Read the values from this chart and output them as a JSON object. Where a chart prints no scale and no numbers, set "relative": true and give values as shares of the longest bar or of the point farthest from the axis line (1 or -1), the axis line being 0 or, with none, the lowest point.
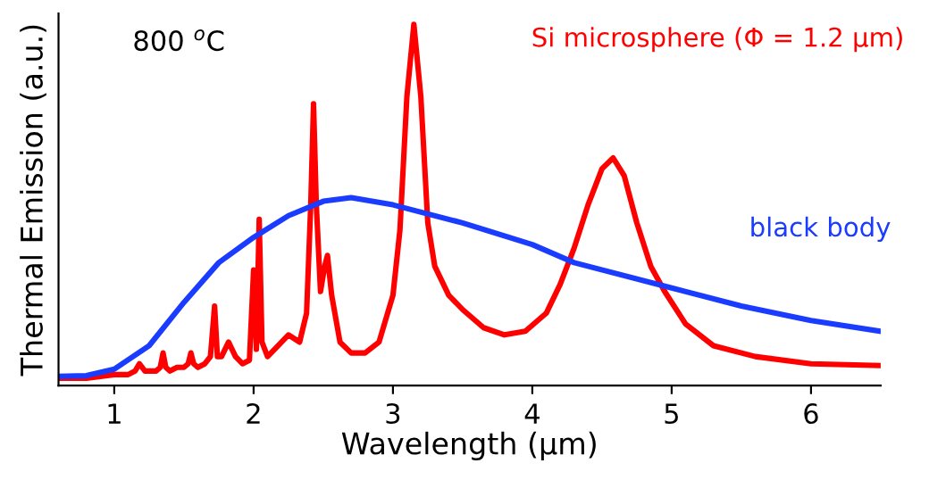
{
  "chart_data": {
    "type": "line",
    "relative": true,
    "xlabel": "Wavelength (µm)",
    "ylabel": "Thermal Emission (a.u.)",
    "annotations": [
      "800 $^{o}$C"
    ],
    "xlim": [
      0.6,
      6.5
    ],
    "xticks": [
      1,
      2,
      3,
      4,
      5,
      6
    ],
    "grid": false,
    "legend": false,
    "marker": "none",
    "line_style": "solid",
    "series": [
      {
        "name": "Si microsphere (Φ = 1.2 µm)",
        "color": "#ff0000",
        "x": [
          0.6,
          0.8,
          1.0,
          1.1,
          1.15,
          1.18,
          1.22,
          1.25,
          1.3,
          1.33,
          1.35,
          1.37,
          1.4,
          1.45,
          1.5,
          1.53,
          1.55,
          1.57,
          1.6,
          1.65,
          1.69,
          1.72,
          1.74,
          1.77,
          1.82,
          1.87,
          1.92,
          1.97,
          2.0,
          2.02,
          2.04,
          2.06,
          2.1,
          2.15,
          2.25,
          2.33,
          2.38,
          2.41,
          2.43,
          2.45,
          2.48,
          2.51,
          2.53,
          2.56,
          2.62,
          2.7,
          2.8,
          2.9,
          3.0,
          3.05,
          3.1,
          3.15,
          3.2,
          3.25,
          3.3,
          3.4,
          3.5,
          3.65,
          3.8,
          3.95,
          4.1,
          4.2,
          4.3,
          4.4,
          4.5,
          4.58,
          4.66,
          4.75,
          4.85,
          4.95,
          5.1,
          5.3,
          5.6,
          6.0,
          6.5
        ],
        "values": [
          0.02,
          0.02,
          0.03,
          0.03,
          0.04,
          0.06,
          0.04,
          0.04,
          0.04,
          0.05,
          0.09,
          0.05,
          0.04,
          0.05,
          0.05,
          0.06,
          0.09,
          0.06,
          0.05,
          0.06,
          0.08,
          0.22,
          0.08,
          0.08,
          0.12,
          0.08,
          0.06,
          0.07,
          0.32,
          0.1,
          0.46,
          0.12,
          0.08,
          0.1,
          0.14,
          0.12,
          0.2,
          0.5,
          0.78,
          0.5,
          0.26,
          0.33,
          0.36,
          0.25,
          0.12,
          0.09,
          0.09,
          0.12,
          0.25,
          0.43,
          0.8,
          1.0,
          0.8,
          0.45,
          0.33,
          0.25,
          0.21,
          0.16,
          0.14,
          0.15,
          0.2,
          0.28,
          0.38,
          0.5,
          0.6,
          0.63,
          0.58,
          0.45,
          0.33,
          0.26,
          0.17,
          0.11,
          0.08,
          0.06,
          0.055
        ]
      },
      {
        "name": "black body",
        "color": "#1a3cff",
        "x": [
          0.6,
          0.8,
          1.0,
          1.25,
          1.5,
          1.75,
          2.0,
          2.25,
          2.5,
          2.7,
          3.0,
          3.5,
          4.0,
          4.3,
          5.0,
          5.5,
          6.0,
          6.5
        ],
        "values": [
          0.025,
          0.027,
          0.045,
          0.11,
          0.23,
          0.34,
          0.41,
          0.47,
          0.51,
          0.52,
          0.5,
          0.45,
          0.39,
          0.34,
          0.27,
          0.22,
          0.18,
          0.15
        ]
      }
    ]
  }
}
